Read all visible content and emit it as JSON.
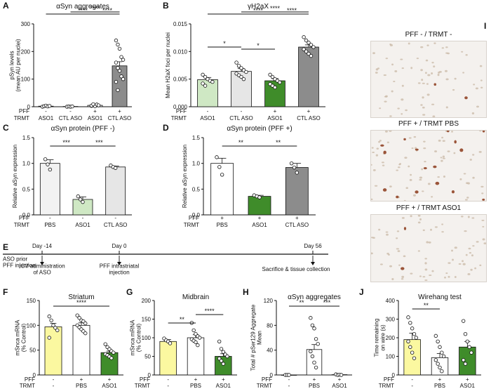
{
  "colors": {
    "light_green": "#cfe8c4",
    "dark_green": "#3f8c2a",
    "light_gray": "#e6e6e6",
    "mid_gray": "#8c8c8c",
    "pale_gray": "#f2f2f2",
    "yellow": "#fbf8a0",
    "white": "#ffffff",
    "cell_brown": "#8b3a1a",
    "tissue": "#f4f1ee"
  },
  "row_labels": {
    "pff": "PFF",
    "trmt": "TRMT"
  },
  "chart_data": [
    {
      "id": "A",
      "type": "bar",
      "title": "αSyn aggregates",
      "ylabel": "pSyn levels\n(mean AU per nuclei)",
      "ylim": [
        0,
        300
      ],
      "yticks": [
        "0",
        "100",
        "200",
        "300"
      ],
      "categories": [
        "1",
        "2",
        "3",
        "4"
      ],
      "pff": [
        "-",
        "-",
        "+",
        "+"
      ],
      "trmt": [
        "ASO1",
        "CTL ASO",
        "ASO1",
        "CTL ASO"
      ],
      "values": [
        2,
        1,
        5,
        148
      ],
      "errors": [
        1,
        1,
        2,
        15
      ],
      "points": [
        [
          0,
          2,
          4,
          1,
          3
        ],
        [
          0,
          1,
          0,
          1
        ],
        [
          3,
          6,
          2,
          8,
          5,
          4,
          9
        ],
        [
          240,
          225,
          210,
          180,
          170,
          160,
          140,
          130,
          110,
          100,
          90,
          60
        ]
      ],
      "sig": [
        {
          "label": "****"
        },
        {
          "label": "****"
        },
        {
          "label": "****"
        }
      ]
    },
    {
      "id": "B",
      "type": "bar",
      "title": "γH2aX",
      "ylabel": "Mean H2aX foci per nuclei",
      "ylim": [
        0,
        0.015
      ],
      "yticks": [
        "0.000",
        "0.005",
        "0.010",
        "0.015"
      ],
      "categories": [
        "1",
        "2",
        "3",
        "4"
      ],
      "pff": [
        "-",
        "-",
        "+",
        "+"
      ],
      "trmt": [
        "ASO1",
        "CTL ASO",
        "ASO1",
        "CTL ASO"
      ],
      "values": [
        0.0049,
        0.0064,
        0.0047,
        0.0108
      ],
      "errors": [
        0.0004,
        0.0005,
        0.0004,
        0.0004
      ],
      "points": [
        [
          0.0058,
          0.0054,
          0.005,
          0.0047,
          0.0045,
          0.0042,
          0.0038
        ],
        [
          0.008,
          0.0074,
          0.007,
          0.0066,
          0.0063,
          0.006,
          0.0057,
          0.0054,
          0.005
        ],
        [
          0.0058,
          0.0054,
          0.005,
          0.0047,
          0.0044,
          0.0041,
          0.0038,
          0.0035
        ],
        [
          0.0126,
          0.012,
          0.0116,
          0.0112,
          0.0108,
          0.0104,
          0.01,
          0.0096,
          0.0092
        ]
      ],
      "sig": [
        {
          "label": "****"
        },
        {
          "label": "****"
        },
        {
          "label": "****"
        },
        {
          "label": "*"
        },
        {
          "label": "*"
        }
      ]
    },
    {
      "id": "C",
      "type": "bar",
      "title": "αSyn protein (PFF -)",
      "ylabel": "Relative aSyn expression",
      "ylim": [
        0,
        1.5
      ],
      "yticks": [
        "0.0",
        "0.5",
        "1.0",
        "1.5"
      ],
      "categories": [
        "1",
        "2",
        "3"
      ],
      "pff": [
        "-",
        "-",
        "-"
      ],
      "trmt": [
        "PBS",
        "ASO1",
        "CTL ASO"
      ],
      "values": [
        1.0,
        0.3,
        0.93
      ],
      "errors": [
        0.07,
        0.05,
        0.02
      ],
      "points": [
        [
          1.08,
          0.98,
          0.88
        ],
        [
          0.36,
          0.3,
          0.25
        ],
        [
          0.96,
          0.93,
          0.91
        ]
      ],
      "sig": [
        {
          "label": "***"
        },
        {
          "label": "***"
        }
      ]
    },
    {
      "id": "D",
      "type": "bar",
      "title": "αSyn protein (PFF +)",
      "ylabel": "Relative aSyn expression",
      "ylim": [
        0,
        1.5
      ],
      "yticks": [
        "0.0",
        "0.5",
        "1.0",
        "1.5"
      ],
      "categories": [
        "1",
        "2",
        "3"
      ],
      "pff": [
        "+",
        "+",
        "+"
      ],
      "trmt": [
        "PBS",
        "ASO1",
        "CTL ASO"
      ],
      "values": [
        1.0,
        0.36,
        0.92
      ],
      "errors": [
        0.1,
        0.02,
        0.08
      ],
      "points": [
        [
          1.12,
          0.93,
          0.78
        ],
        [
          0.38,
          0.36,
          0.34
        ],
        [
          1.0,
          0.92,
          0.82
        ]
      ],
      "sig": [
        {
          "label": "**"
        },
        {
          "label": "**"
        }
      ]
    },
    {
      "id": "F",
      "type": "bar",
      "title": "Striatum",
      "ylabel": "mSnca mRNA\n(% Control)",
      "ylim": [
        0,
        150
      ],
      "yticks": [
        "0",
        "50",
        "100",
        "150"
      ],
      "categories": [
        "1",
        "2",
        "3"
      ],
      "pff": [
        "-",
        "+",
        "+"
      ],
      "trmt": [
        "-",
        "PBS",
        "ASO1"
      ],
      "values": [
        97,
        100,
        45
      ],
      "errors": [
        7,
        5,
        3
      ],
      "points": [
        [
          118,
          110,
          100,
          95,
          90,
          75
        ],
        [
          120,
          115,
          110,
          108,
          104,
          100,
          96,
          92,
          88,
          84
        ],
        [
          62,
          56,
          52,
          48,
          45,
          42,
          40,
          37,
          34
        ]
      ],
      "sig": [
        {
          "label": "****"
        }
      ]
    },
    {
      "id": "G",
      "type": "bar",
      "title": "Midbrain",
      "ylabel": "mSnca mRNA\n(% Control)",
      "ylim": [
        0,
        200
      ],
      "yticks": [
        "0",
        "50",
        "100",
        "150",
        "200"
      ],
      "categories": [
        "1",
        "2",
        "3"
      ],
      "pff": [
        "-",
        "+",
        "+"
      ],
      "trmt": [
        "-",
        "PBS",
        "ASO1"
      ],
      "values": [
        90,
        100,
        50
      ],
      "errors": [
        5,
        8,
        7
      ],
      "points": [
        [
          98,
          93,
          90,
          85
        ],
        [
          140,
          120,
          110,
          104,
          100,
          96,
          92,
          88,
          80
        ],
        [
          90,
          70,
          62,
          55,
          50,
          44,
          38,
          30
        ]
      ],
      "sig": [
        {
          "label": "**"
        },
        {
          "label": "****"
        }
      ]
    },
    {
      "id": "H",
      "type": "bar",
      "title": "αSyn aggregates",
      "ylabel": "Total # pSer129 Aggregate\nMean",
      "ylim": [
        0,
        120
      ],
      "yticks": [
        "0",
        "40",
        "80",
        "120"
      ],
      "categories": [
        "1",
        "2",
        "3"
      ],
      "pff": [
        "-",
        "+",
        "+"
      ],
      "trmt": [
        "-",
        "PBS",
        "ASO1"
      ],
      "values": [
        0,
        41,
        0.5
      ],
      "errors": [
        0,
        8,
        0.3
      ],
      "points": [
        [
          0,
          0,
          0
        ],
        [
          92,
          80,
          75,
          58,
          50,
          38,
          30,
          20,
          12
        ],
        [
          1,
          0,
          0.5,
          0
        ]
      ],
      "sig": [
        {
          "label": "**"
        },
        {
          "label": "***"
        }
      ]
    },
    {
      "id": "J",
      "type": "bar",
      "title": "Wirehang test",
      "ylabel": "Time remaining\non wire (s)",
      "ylim": [
        0,
        400
      ],
      "yticks": [
        "0",
        "100",
        "200",
        "300",
        "400"
      ],
      "categories": [
        "1",
        "2",
        "3"
      ],
      "pff": [
        "-",
        "+",
        "+"
      ],
      "trmt": [
        "-",
        "PBS",
        "ASO1"
      ],
      "values": [
        190,
        93,
        150
      ],
      "errors": [
        35,
        22,
        30
      ],
      "points": [
        [
          310,
          280,
          250,
          220,
          200,
          180,
          150,
          120,
          90
        ],
        [
          210,
          180,
          150,
          120,
          100,
          80,
          60,
          40,
          20
        ],
        [
          290,
          220,
          180,
          150,
          120,
          80,
          60
        ]
      ],
      "sig": [
        {
          "label": "**"
        }
      ]
    }
  ],
  "timeline": {
    "id": "E",
    "intro": "ASO prior\nPFF injection",
    "ticks": [
      {
        "label": "Day -14",
        "desc": "ICV administration\nof ASO"
      },
      {
        "label": "Day 0",
        "desc": "PFF intrastriatal\ninjection"
      },
      {
        "label": "Day 56",
        "desc": "Sacrifice & tissue collection"
      }
    ]
  },
  "micrographs": {
    "id": "I",
    "panels": [
      {
        "title": "PFF - / TRMT -",
        "positive_cells": 2
      },
      {
        "title": "PFF + / TRMT PBS",
        "positive_cells": 16
      },
      {
        "title": "PFF + / TRMT ASO1",
        "positive_cells": 2
      }
    ]
  }
}
